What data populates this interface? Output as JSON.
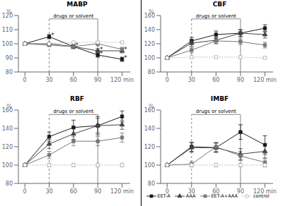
{
  "chart_data": [
    {
      "type": "line",
      "title": "MABP",
      "x": [
        0,
        30,
        60,
        90,
        120
      ],
      "xlim": [
        -8,
        130
      ],
      "xticks": [
        0,
        30,
        60,
        90,
        {
          "value": 120,
          "label": "120 min"
        }
      ],
      "ylim": [
        80,
        120
      ],
      "yticks": [
        80,
        90,
        100,
        110,
        120
      ],
      "y_label": "%",
      "series": [
        {
          "name": "EET-A",
          "color": "#1a1a1a",
          "marker": "square",
          "line_style": "solid",
          "values": [
            100,
            105,
            98,
            92,
            89
          ],
          "errors": [
            0.5,
            1.5,
            1.5,
            1.5,
            1.5
          ]
        },
        {
          "name": "AAA",
          "color": "#444444",
          "marker": "triangle",
          "line_style": "solid",
          "values": [
            100,
            100,
            98,
            95,
            95
          ],
          "errors": [
            0.5,
            0.8,
            1.2,
            1.5,
            1.5
          ]
        },
        {
          "name": "EET-A+AAA",
          "color": "#777777",
          "marker": "square",
          "line_style": "solid",
          "values": [
            100,
            99,
            98,
            100,
            96
          ],
          "errors": [
            0.5,
            0.8,
            1.2,
            1.5,
            1.5
          ]
        },
        {
          "name": "control",
          "color": "#aaaaaa",
          "marker": "hollow_circle",
          "line_style": "dotted",
          "values": [
            100,
            100,
            101,
            101,
            101
          ],
          "errors": [
            0.5,
            0.8,
            0.8,
            0.8,
            0.8
          ]
        }
      ],
      "regions": [
        {
          "label": "drugs or solvent",
          "x": [
            30,
            90
          ]
        }
      ],
      "annotations": [
        {
          "text": "*",
          "x": 30,
          "y": 106
        },
        {
          "text": "*",
          "x": 60,
          "y": 99
        },
        {
          "text": "*",
          "x": 90,
          "y": 93
        },
        {
          "text": "*",
          "x": 120,
          "y": 90
        },
        {
          "text": "*",
          "x": 90,
          "y": 96
        },
        {
          "text": "*",
          "x": 120,
          "y": 96
        }
      ]
    },
    {
      "type": "line",
      "title": "RBF",
      "x": [
        0,
        30,
        60,
        90,
        120
      ],
      "xlim": [
        -8,
        130
      ],
      "xticks": [
        0,
        30,
        60,
        90,
        {
          "value": 120,
          "label": "120 min"
        }
      ],
      "ylim": [
        80,
        160
      ],
      "yticks": [
        80,
        100,
        120,
        140,
        160
      ],
      "y_label": "%",
      "series": [
        {
          "name": "EET-A",
          "color": "#1a1a1a",
          "marker": "square",
          "line_style": "solid",
          "values": [
            100,
            131,
            141,
            143,
            153
          ],
          "errors": [
            0.5,
            5,
            8,
            10,
            6
          ]
        },
        {
          "name": "AAA",
          "color": "#444444",
          "marker": "triangle",
          "line_style": "solid",
          "values": [
            100,
            123,
            134,
            143,
            144
          ],
          "errors": [
            0.5,
            5,
            6,
            8,
            5
          ]
        },
        {
          "name": "EET-A+AAA",
          "color": "#777777",
          "marker": "square",
          "line_style": "solid",
          "values": [
            100,
            111,
            126,
            126,
            130
          ],
          "errors": [
            0.5,
            4,
            5,
            5,
            5
          ]
        },
        {
          "name": "control",
          "color": "#aaaaaa",
          "marker": "hollow_circle",
          "line_style": "dotted",
          "values": [
            100,
            100,
            100,
            100,
            100
          ],
          "errors": [
            0.5,
            2,
            2,
            2,
            2
          ]
        }
      ],
      "regions": [
        {
          "label": "drugs or solvent",
          "x": [
            30,
            90
          ]
        }
      ]
    },
    {
      "type": "line",
      "title": "CBF",
      "x": [
        0,
        30,
        60,
        90,
        120
      ],
      "xlim": [
        -8,
        130
      ],
      "xticks": [
        0,
        30,
        60,
        90,
        {
          "value": 120,
          "label": "120 min"
        }
      ],
      "ylim": [
        80,
        160
      ],
      "yticks": [
        80,
        100,
        120,
        140,
        160
      ],
      "y_label": "%",
      "series": [
        {
          "name": "EET-A",
          "color": "#1a1a1a",
          "marker": "square",
          "line_style": "solid",
          "values": [
            100,
            124,
            133,
            135,
            142
          ],
          "errors": [
            0.5,
            5,
            5,
            5,
            5
          ]
        },
        {
          "name": "AAA",
          "color": "#444444",
          "marker": "triangle",
          "line_style": "solid",
          "values": [
            100,
            121,
            125,
            135,
            133
          ],
          "errors": [
            0.5,
            5,
            5,
            5,
            5
          ]
        },
        {
          "name": "EET-A+AAA",
          "color": "#777777",
          "marker": "square",
          "line_style": "solid",
          "values": [
            100,
            111,
            124,
            123,
            118
          ],
          "errors": [
            0.5,
            4,
            4,
            4,
            4
          ]
        },
        {
          "name": "control",
          "color": "#aaaaaa",
          "marker": "hollow_circle",
          "line_style": "dotted",
          "values": [
            100,
            101,
            101,
            101,
            100
          ],
          "errors": [
            0.5,
            2,
            2,
            2,
            2
          ]
        }
      ],
      "regions": [
        {
          "label": "drugs or solvent",
          "x": [
            30,
            90
          ]
        }
      ]
    },
    {
      "type": "line",
      "title": "IMBF",
      "x": [
        0,
        30,
        60,
        90,
        120
      ],
      "xlim": [
        -8,
        130
      ],
      "xticks": [
        0,
        30,
        60,
        90,
        {
          "value": 120,
          "label": "120 min"
        }
      ],
      "ylim": [
        80,
        160
      ],
      "yticks": [
        80,
        100,
        120,
        140,
        160
      ],
      "y_label": "%",
      "legend": "bottom",
      "series": [
        {
          "name": "EET-A",
          "color": "#1a1a1a",
          "marker": "square",
          "line_style": "solid",
          "values": [
            100,
            120,
            119,
            136,
            122
          ],
          "errors": [
            0.5,
            5,
            5,
            8,
            10
          ]
        },
        {
          "name": "AAA",
          "color": "#444444",
          "marker": "triangle",
          "line_style": "solid",
          "values": [
            100,
            119,
            119,
            112,
            115
          ],
          "errors": [
            0.5,
            5,
            5,
            6,
            8
          ]
        },
        {
          "name": "EET-A+AAA",
          "color": "#777777",
          "marker": "square",
          "line_style": "solid",
          "values": [
            100,
            101,
            120,
            110,
            103
          ],
          "errors": [
            0.5,
            3,
            5,
            5,
            5
          ]
        },
        {
          "name": "control",
          "color": "#aaaaaa",
          "marker": "hollow_circle",
          "line_style": "dotted",
          "values": [
            100,
            100,
            100,
            100,
            100
          ],
          "errors": [
            0.5,
            2,
            2,
            2,
            2
          ]
        }
      ],
      "regions": [
        {
          "label": "drugs or solvent",
          "x": [
            30,
            90
          ]
        }
      ]
    }
  ]
}
